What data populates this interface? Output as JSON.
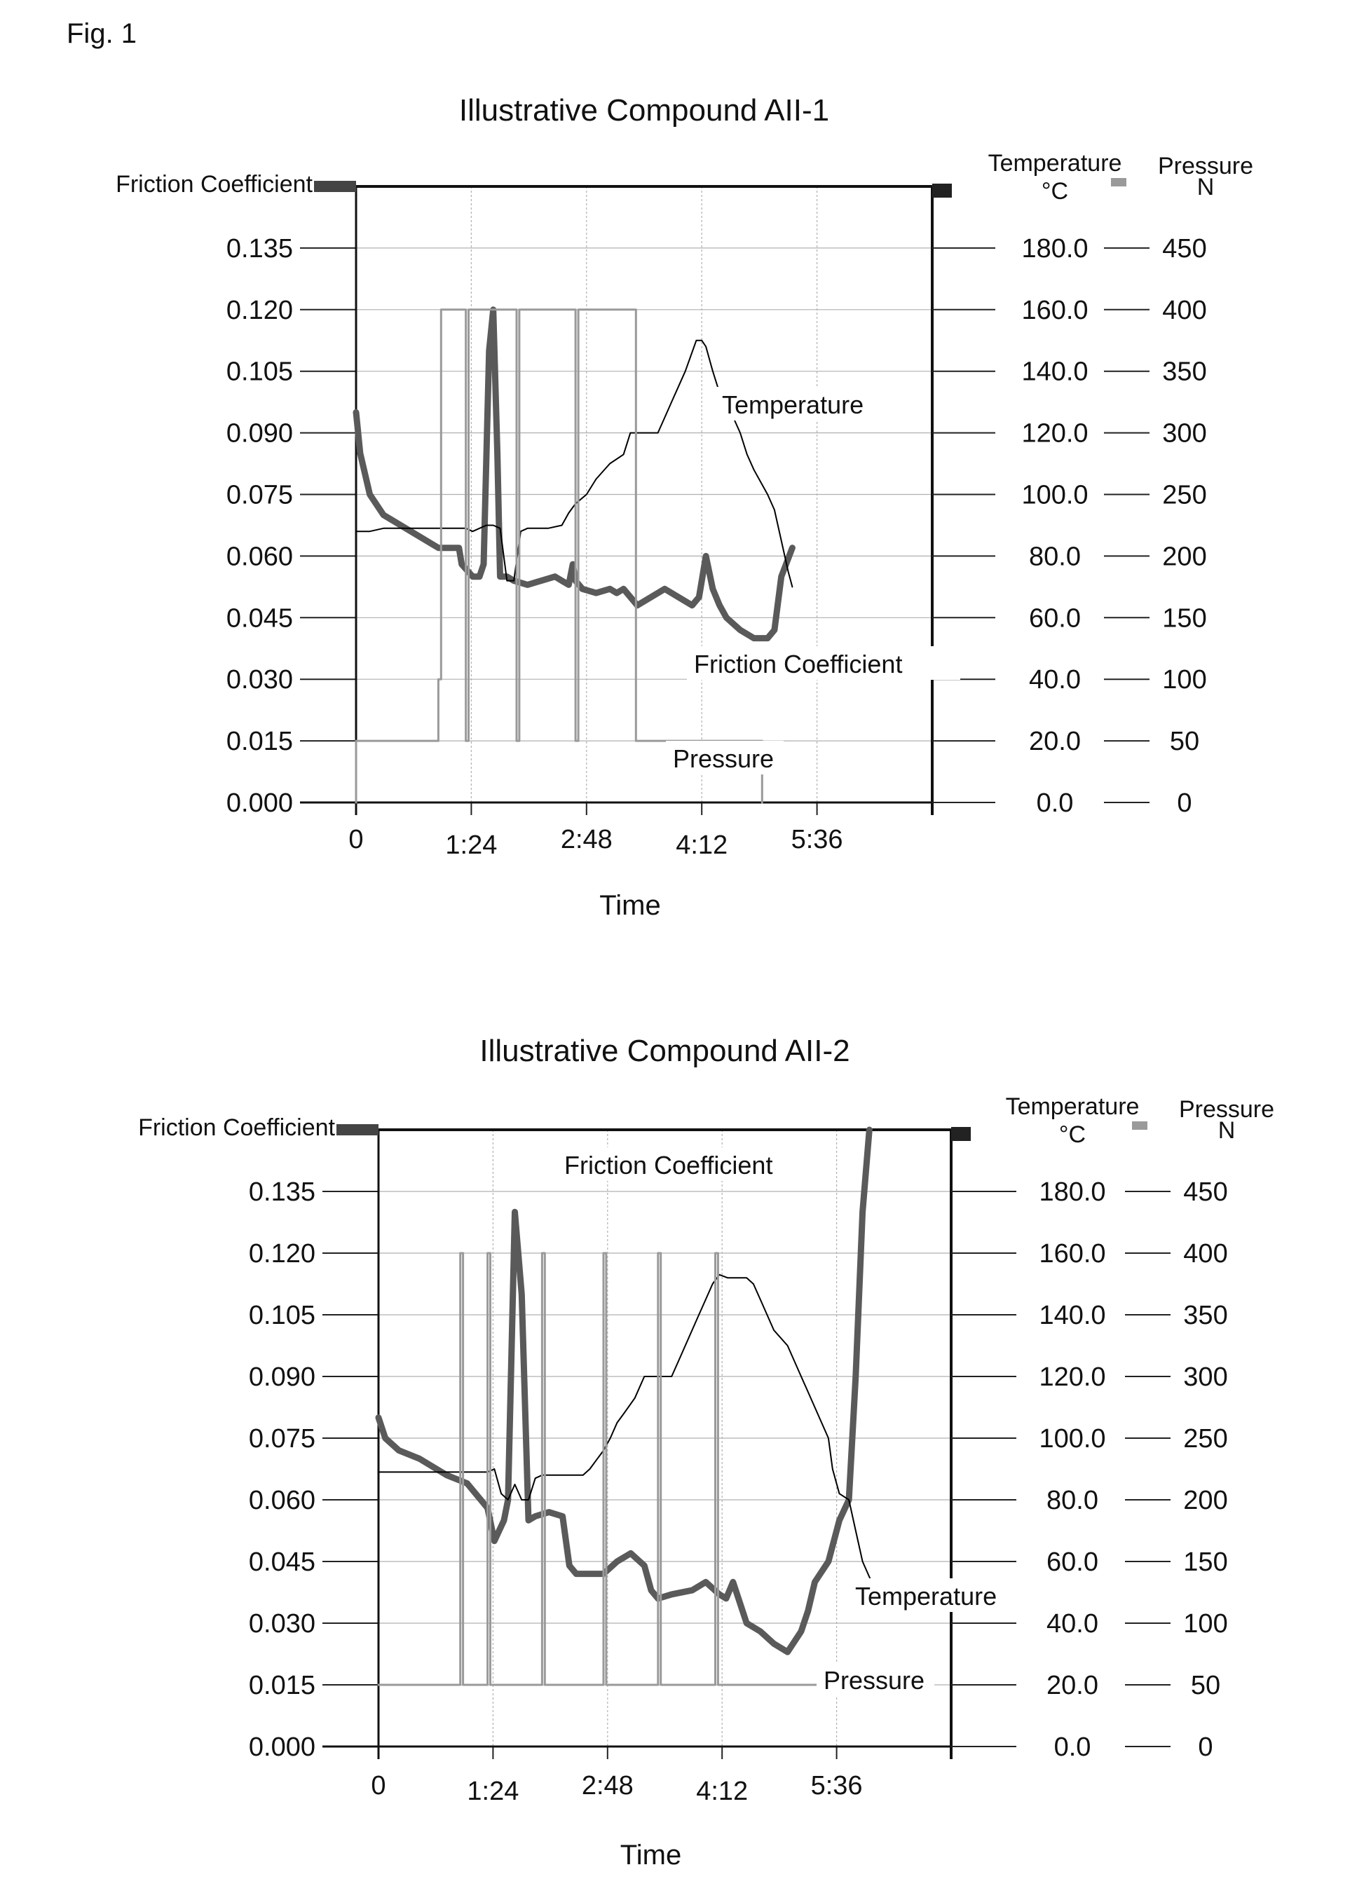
{
  "figure_label": "Fig. 1",
  "colors": {
    "friction": "#5a5a5a",
    "temperature": "#000000",
    "pressure": "#9a9a9a",
    "grid": "#b0b0b0"
  },
  "chart_data": [
    {
      "type": "line",
      "title": "Illustrative Compound AII-1",
      "xlabel": "Time",
      "x_ticks": [
        "0",
        "1:24",
        "2:48",
        "4:12",
        "5:36"
      ],
      "x_range_min": [
        0,
        420
      ],
      "grid": true,
      "axes": {
        "friction": {
          "label": "Friction Coefficient",
          "range": [
            0,
            0.15
          ],
          "ticks": [
            "0.000",
            "0.015",
            "0.030",
            "0.045",
            "0.060",
            "0.075",
            "0.090",
            "0.105",
            "0.120",
            "0.135"
          ]
        },
        "temperature": {
          "label": "Temperature",
          "unit": "°C",
          "range": [
            0,
            200
          ],
          "ticks": [
            "0.0",
            "20.0",
            "40.0",
            "60.0",
            "80.0",
            "100.0",
            "120.0",
            "140.0",
            "160.0",
            "180.0"
          ]
        },
        "pressure": {
          "label": "Pressure",
          "unit": "N",
          "range": [
            0,
            500
          ],
          "ticks": [
            "0",
            "50",
            "100",
            "150",
            "200",
            "250",
            "300",
            "350",
            "400",
            "450"
          ]
        }
      },
      "series": [
        {
          "name": "Friction Coefficient",
          "axis": "friction",
          "x": [
            0,
            3,
            10,
            20,
            40,
            60,
            75,
            77,
            85,
            90,
            93,
            97,
            100,
            103,
            105,
            110,
            115,
            125,
            135,
            145,
            150,
            155,
            158,
            160,
            165,
            175,
            185,
            190,
            195,
            205,
            215,
            225,
            235,
            245,
            250,
            255,
            260,
            265,
            270,
            280,
            290,
            300,
            305,
            310,
            318
          ],
          "y": [
            0.095,
            0.085,
            0.075,
            0.07,
            0.066,
            0.062,
            0.062,
            0.058,
            0.055,
            0.055,
            0.058,
            0.11,
            0.12,
            0.085,
            0.055,
            0.055,
            0.054,
            0.053,
            0.054,
            0.055,
            0.054,
            0.053,
            0.058,
            0.054,
            0.052,
            0.051,
            0.052,
            0.051,
            0.052,
            0.048,
            0.05,
            0.052,
            0.05,
            0.048,
            0.05,
            0.06,
            0.052,
            0.048,
            0.045,
            0.042,
            0.04,
            0.04,
            0.042,
            0.055,
            0.062
          ]
        },
        {
          "name": "Temperature",
          "axis": "temperature",
          "x": [
            0,
            10,
            20,
            40,
            60,
            75,
            80,
            85,
            90,
            95,
            100,
            105,
            110,
            115,
            120,
            125,
            130,
            140,
            150,
            155,
            160,
            168,
            175,
            185,
            195,
            200,
            210,
            215,
            220,
            225,
            230,
            235,
            240,
            248,
            252,
            255,
            260,
            265,
            270,
            275,
            280,
            285,
            290,
            300,
            305,
            310,
            315,
            318
          ],
          "y": [
            88,
            88,
            89,
            89,
            89,
            89,
            89,
            88,
            89,
            90,
            90,
            89,
            72,
            72,
            88,
            89,
            89,
            89,
            90,
            94,
            97,
            100,
            105,
            110,
            113,
            120,
            120,
            120,
            120,
            125,
            130,
            135,
            140,
            150,
            150,
            148,
            140,
            133,
            130,
            125,
            120,
            113,
            108,
            100,
            95,
            85,
            75,
            70
          ]
        },
        {
          "name": "Pressure",
          "axis": "pressure",
          "x": [
            0,
            0,
            60,
            60,
            62,
            62,
            80,
            80,
            82,
            82,
            117,
            117,
            119,
            119,
            160,
            160,
            162,
            162,
            204,
            204,
            206,
            206,
            288,
            288,
            296,
            296
          ],
          "y": [
            0,
            50,
            50,
            100,
            100,
            400,
            400,
            50,
            50,
            400,
            400,
            50,
            50,
            400,
            400,
            50,
            50,
            400,
            400,
            50,
            50,
            50,
            50,
            50,
            50,
            0
          ]
        }
      ],
      "annotations": [
        "Temperature",
        "Friction Coefficient",
        "Pressure"
      ]
    },
    {
      "type": "line",
      "title": "Illustrative Compound AII-2",
      "xlabel": "Time",
      "x_ticks": [
        "0",
        "1:24",
        "2:48",
        "4:12",
        "5:36"
      ],
      "x_range_min": [
        0,
        420
      ],
      "grid": true,
      "axes": {
        "friction": {
          "label": "Friction Coefficient",
          "range": [
            0,
            0.15
          ],
          "ticks": [
            "0.000",
            "0.015",
            "0.030",
            "0.045",
            "0.060",
            "0.075",
            "0.090",
            "0.105",
            "0.120",
            "0.135"
          ]
        },
        "temperature": {
          "label": "Temperature",
          "unit": "°C",
          "range": [
            0,
            200
          ],
          "ticks": [
            "0.0",
            "20.0",
            "40.0",
            "60.0",
            "80.0",
            "100.0",
            "120.0",
            "140.0",
            "160.0",
            "180.0"
          ]
        },
        "pressure": {
          "label": "Pressure",
          "unit": "N",
          "range": [
            0,
            500
          ],
          "ticks": [
            "0",
            "50",
            "100",
            "150",
            "200",
            "250",
            "300",
            "350",
            "400",
            "450"
          ]
        }
      },
      "series": [
        {
          "name": "Friction Coefficient",
          "axis": "friction",
          "x": [
            0,
            5,
            15,
            30,
            50,
            65,
            75,
            80,
            85,
            92,
            95,
            100,
            105,
            110,
            115,
            125,
            135,
            140,
            145,
            155,
            165,
            175,
            185,
            195,
            200,
            205,
            215,
            230,
            240,
            250,
            255,
            260,
            270,
            280,
            290,
            300,
            310,
            315,
            320,
            330,
            338,
            345,
            350,
            355,
            360
          ],
          "y": [
            0.08,
            0.075,
            0.072,
            0.07,
            0.066,
            0.064,
            0.06,
            0.058,
            0.05,
            0.055,
            0.06,
            0.13,
            0.11,
            0.055,
            0.056,
            0.057,
            0.056,
            0.044,
            0.042,
            0.042,
            0.042,
            0.045,
            0.047,
            0.044,
            0.038,
            0.036,
            0.037,
            0.038,
            0.04,
            0.037,
            0.036,
            0.04,
            0.03,
            0.028,
            0.025,
            0.023,
            0.028,
            0.033,
            0.04,
            0.045,
            0.055,
            0.06,
            0.09,
            0.13,
            0.15
          ]
        },
        {
          "name": "Temperature",
          "axis": "temperature",
          "x": [
            0,
            10,
            30,
            50,
            70,
            80,
            85,
            90,
            95,
            100,
            105,
            110,
            115,
            120,
            125,
            130,
            140,
            150,
            155,
            160,
            165,
            170,
            175,
            180,
            188,
            195,
            205,
            210,
            215,
            220,
            225,
            230,
            235,
            240,
            245,
            250,
            256,
            262,
            270,
            275,
            280,
            285,
            290,
            300,
            305,
            310,
            315,
            320,
            325,
            330,
            333,
            338,
            345,
            350,
            355,
            360,
            365
          ],
          "y": [
            89,
            89,
            89,
            89,
            89,
            89,
            90,
            82,
            80,
            85,
            80,
            80,
            87,
            88,
            88,
            88,
            88,
            88,
            90,
            93,
            96,
            100,
            105,
            108,
            113,
            120,
            120,
            120,
            120,
            125,
            130,
            135,
            140,
            145,
            150,
            153,
            152,
            152,
            152,
            150,
            145,
            140,
            135,
            130,
            125,
            120,
            115,
            110,
            105,
            100,
            90,
            82,
            80,
            70,
            60,
            55,
            50
          ]
        },
        {
          "name": "Pressure",
          "axis": "pressure",
          "x": [
            0,
            60,
            60,
            62,
            62,
            80,
            80,
            82,
            82,
            120,
            120,
            122,
            122,
            165,
            165,
            167,
            167,
            205,
            205,
            207,
            207,
            247,
            247,
            249,
            249,
            310,
            310,
            365
          ],
          "y": [
            50,
            50,
            400,
            400,
            50,
            50,
            400,
            400,
            50,
            50,
            400,
            400,
            50,
            50,
            400,
            400,
            50,
            50,
            400,
            400,
            50,
            50,
            400,
            400,
            50,
            50,
            50,
            50
          ]
        }
      ],
      "annotations": [
        "Friction Coefficient",
        "Temperature",
        "Pressure"
      ]
    }
  ]
}
